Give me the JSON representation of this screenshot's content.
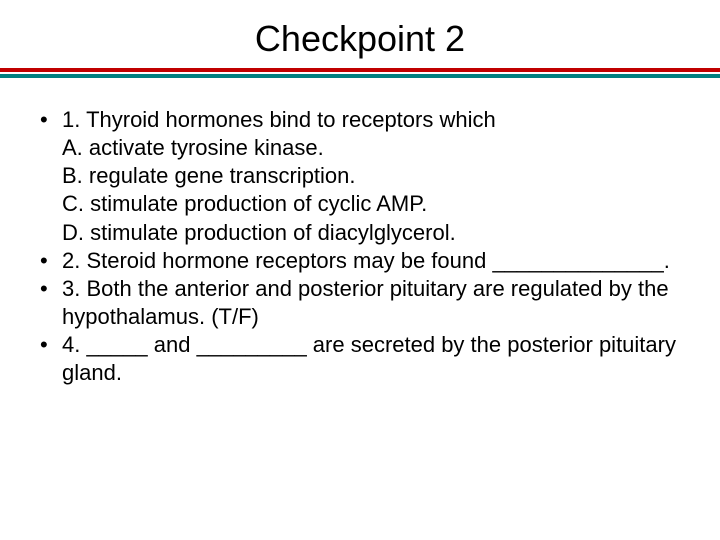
{
  "title": "Checkpoint 2",
  "colors": {
    "divider_top": "#c00000",
    "divider_bottom": "#008080",
    "text": "#000000",
    "background": "#ffffff"
  },
  "typography": {
    "title_fontsize": 36,
    "body_fontsize": 22,
    "font_family": "Arial"
  },
  "items": [
    {
      "main": "1. Thyroid hormones bind to receptors which",
      "subs": [
        "A. activate tyrosine kinase.",
        "B. regulate gene transcription.",
        "C. stimulate production of cyclic AMP.",
        "D. stimulate production of diacylglycerol."
      ]
    },
    {
      "main": "2. Steroid hormone receptors may be found ______________.",
      "subs": []
    },
    {
      "main": "3. Both the anterior and posterior pituitary are regulated by the hypothalamus. (T/F)",
      "subs": []
    },
    {
      "main": "4. _____ and _________ are secreted by the posterior pituitary gland.",
      "subs": []
    }
  ]
}
